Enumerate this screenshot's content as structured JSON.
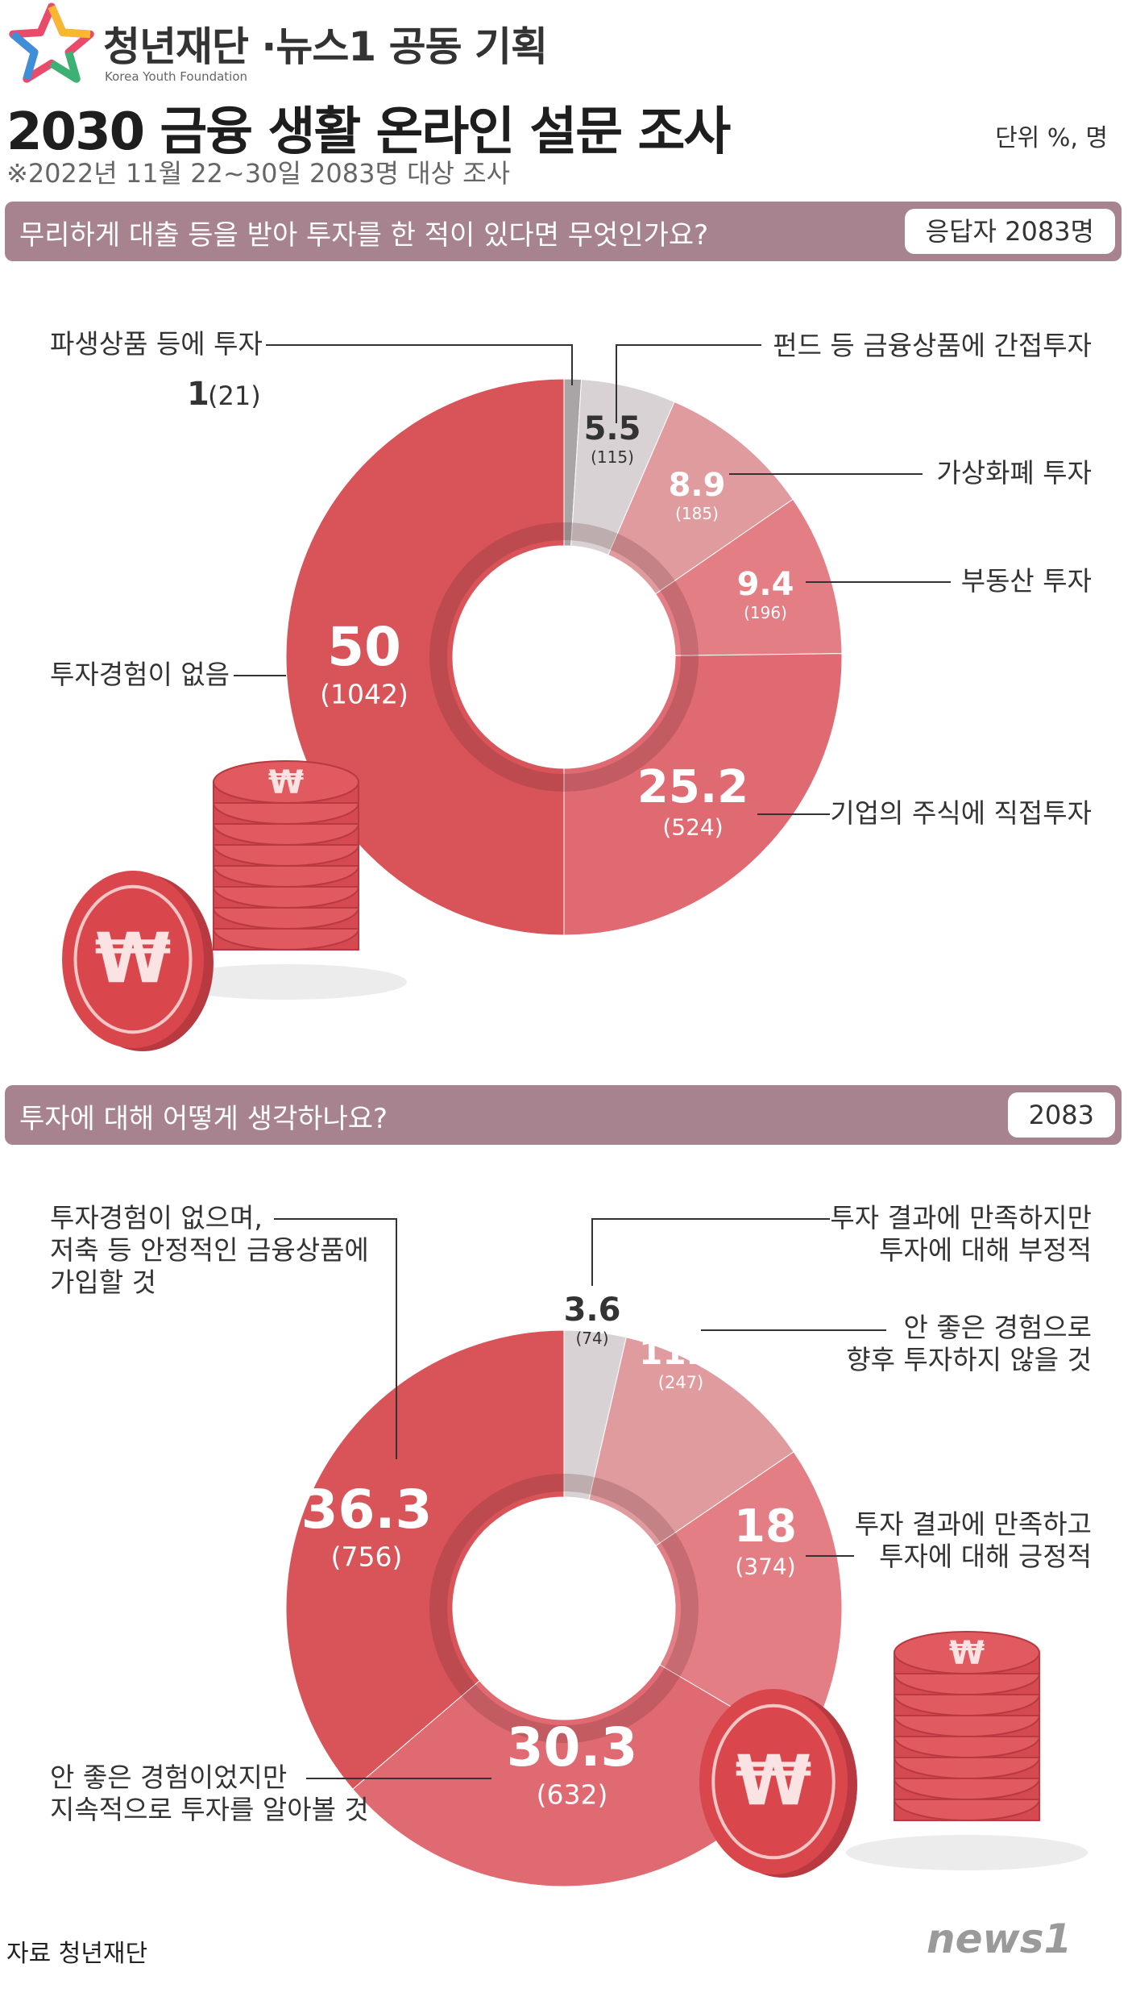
{
  "header": {
    "org_title": "청년재단 ·뉴스1 공동 기획",
    "org_subtitle": "Korea Youth Foundation",
    "main_title": "2030 금융 생활  온라인 설문 조사",
    "subtitle": "※2022년 11월 22~30일 2083명 대상 조사",
    "unit": "단위 %, 명"
  },
  "questions": [
    {
      "text": "무리하게 대출 등을 받아 투자를 한 적이 있다면 무엇인가요?",
      "respondents": "응답자 2083명"
    },
    {
      "text": "투자에 대해 어떻게 생각하나요?",
      "respondents": "2083"
    }
  ],
  "chart_data": [
    {
      "type": "pie",
      "title": "무리하게 대출 등을 받아 투자를 한 적이 있다면 무엇인가요?",
      "unit": "%",
      "categories": [
        "파생상품 등에 투자",
        "펀드 등 금융상품에 간접투자",
        "가상화폐 투자",
        "부동산 투자",
        "기업의 주식에 직접투자",
        "투자경험이 없음"
      ],
      "values": [
        1,
        5.5,
        8.9,
        9.4,
        25.2,
        50
      ],
      "counts": [
        21,
        115,
        185,
        196,
        524,
        1042
      ],
      "value_labels": [
        "1",
        "5.5",
        "8.9",
        "9.4",
        "25.2",
        "50"
      ],
      "count_labels": [
        "(21)",
        "(115)",
        "(185)",
        "(196)",
        "(524)",
        "(1042)"
      ],
      "label_sides": [
        "left",
        "right",
        "right",
        "right",
        "right",
        "left"
      ],
      "colors": [
        "#a9a4a6",
        "#d9d2d4",
        "#e09b9f",
        "#e37e84",
        "#e06a71",
        "#d95459"
      ]
    },
    {
      "type": "pie",
      "title": "투자에 대해 어떻게 생각하나요?",
      "unit": "%",
      "categories": [
        "투자 결과에 만족하지만 투자에 대해 부정적",
        "안 좋은 경험으로 향후 투자하지 않을 것",
        "투자 결과에 만족하고 투자에 대해 긍정적",
        "안 좋은 경험이었지만 지속적으로 투자를 알아볼 것",
        "투자경험이 없으며, 저축 등 안정적인 금융상품에 가입할 것"
      ],
      "values": [
        3.6,
        11.9,
        18,
        30.3,
        36.3
      ],
      "counts": [
        74,
        247,
        374,
        632,
        756
      ],
      "value_labels": [
        "3.6",
        "11.9",
        "18",
        "30.3",
        "36.3"
      ],
      "count_labels": [
        "(74)",
        "(247)",
        "(374)",
        "(632)",
        "(756)"
      ],
      "label_lines": [
        [
          "투자 결과에 만족하지만",
          "투자에 대해 부정적"
        ],
        [
          "안 좋은 경험으로",
          "향후 투자하지 않을 것"
        ],
        [
          "투자 결과에 만족하고",
          "투자에 대해 긍정적"
        ],
        [
          "안 좋은 경험이었지만",
          "지속적으로 투자를 알아볼 것"
        ],
        [
          "투자경험이 없으며,",
          "저축 등 안정적인 금융상품에",
          "가입할 것"
        ]
      ],
      "colors": [
        "#d9d2d4",
        "#e09b9f",
        "#e37e84",
        "#e06a71",
        "#d95459"
      ]
    }
  ],
  "coin_symbol": "₩",
  "source": "자료 청년재단",
  "news_logo": "news1"
}
